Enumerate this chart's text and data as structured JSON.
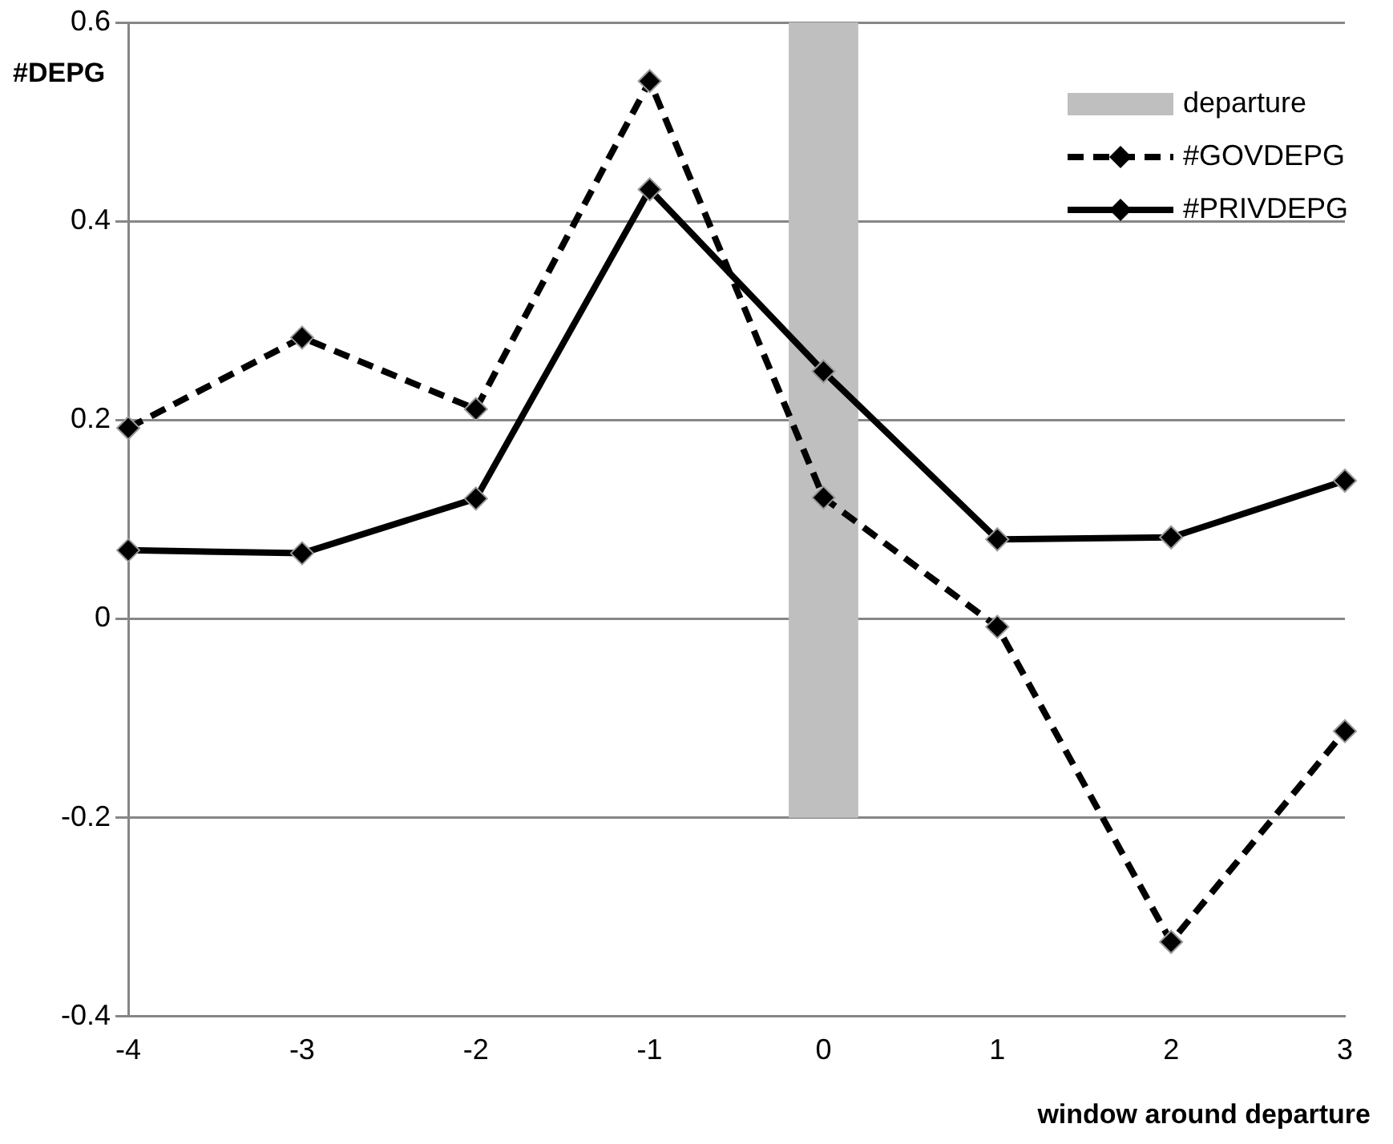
{
  "chart_data": {
    "type": "line",
    "ylabel": "#DEPG",
    "xlabel": "window around departure",
    "categories": [
      "-4",
      "-3",
      "-2",
      "-1",
      "0",
      "1",
      "2",
      "3"
    ],
    "series": [
      {
        "name": "departure",
        "type": "bar",
        "color": "#bfbfbf",
        "values": [
          null,
          null,
          null,
          null,
          0.8,
          null,
          null,
          null
        ],
        "base": [
          null,
          null,
          null,
          null,
          -0.2,
          null,
          null,
          null
        ]
      },
      {
        "name": "#GOVDEPG",
        "color": "#000000",
        "line_style": "dashed",
        "marker": "diamond",
        "values": [
          0.192,
          0.283,
          0.211,
          0.541,
          0.122,
          -0.008,
          -0.325,
          -0.113
        ]
      },
      {
        "name": "#PRIVDEPG",
        "color": "#000000",
        "line_style": "solid",
        "marker": "diamond",
        "values": [
          0.069,
          0.066,
          0.121,
          0.432,
          0.249,
          0.08,
          0.082,
          0.139
        ]
      }
    ],
    "ylim": [
      -0.4,
      0.6
    ],
    "yticks": [
      -0.4,
      -0.2,
      0,
      0.2,
      0.4,
      0.6
    ],
    "grid": "y",
    "legend": "top right"
  }
}
